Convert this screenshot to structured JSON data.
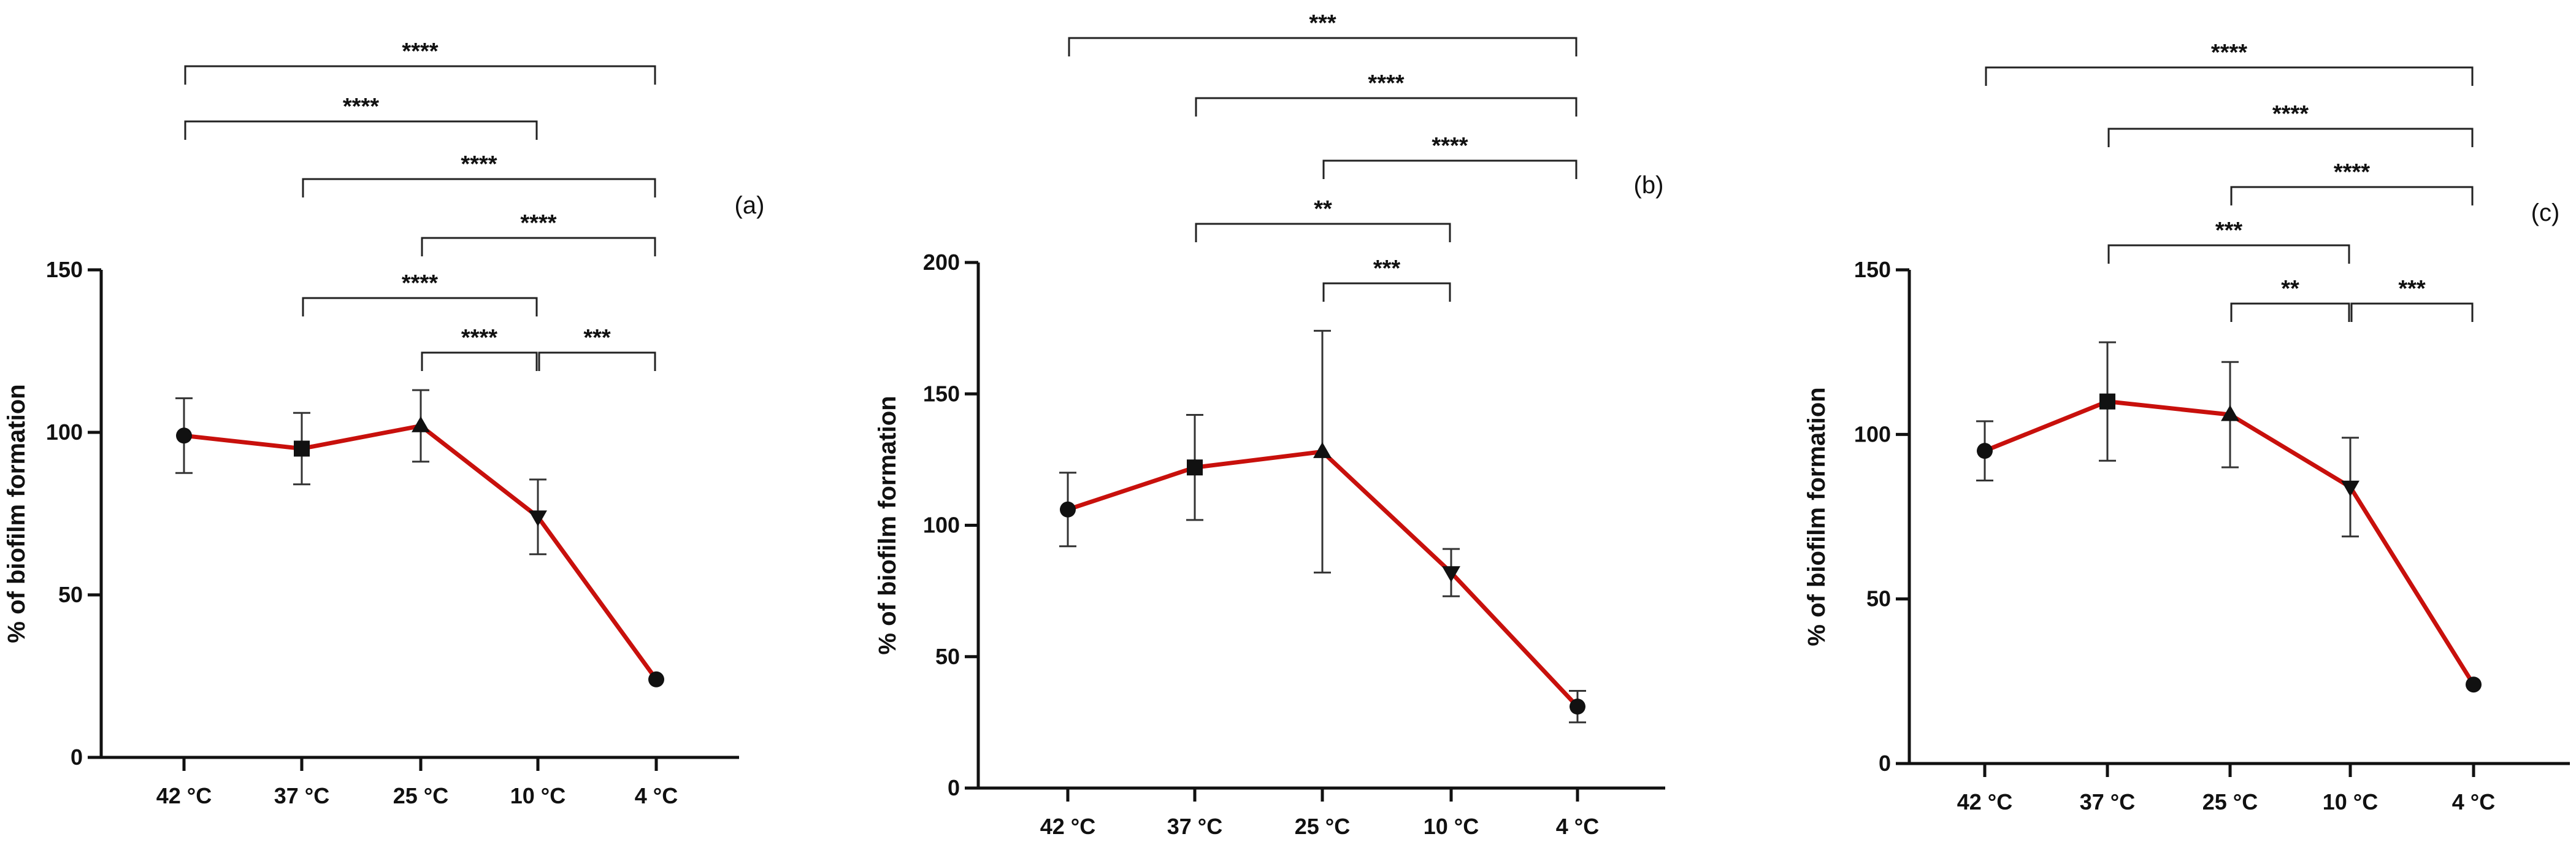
{
  "figure": {
    "type": "line",
    "panels": 3
  },
  "chart_data": [
    {
      "type": "line",
      "panel_label": "(a)",
      "title": "",
      "xlabel": "",
      "ylabel": "% of biofilm formation",
      "categories": [
        "42 °C",
        "37 °C",
        "25 °C",
        "10 °C",
        "4 °C"
      ],
      "values": [
        99,
        95,
        102,
        74,
        24
      ],
      "errors": [
        11.5,
        11,
        11,
        11.5,
        1
      ],
      "markers": [
        "circle",
        "square",
        "triangle-up",
        "triangle-down",
        "circle"
      ],
      "ylim": [
        0,
        150
      ],
      "yticks": [
        0,
        50,
        100,
        150
      ],
      "line_color": "#c8100c",
      "significance": [
        {
          "from": 0,
          "to": 4,
          "label": "****"
        },
        {
          "from": 0,
          "to": 3,
          "label": "****"
        },
        {
          "from": 1,
          "to": 4,
          "label": "****"
        },
        {
          "from": 2,
          "to": 4,
          "label": "****"
        },
        {
          "from": 1,
          "to": 3,
          "label": "****"
        },
        {
          "from": 2,
          "to": 3,
          "label": "****"
        },
        {
          "from": 3,
          "to": 4,
          "label": "***"
        }
      ]
    },
    {
      "type": "line",
      "panel_label": "(b)",
      "title": "",
      "xlabel": "",
      "ylabel": "% of biofilm formation",
      "categories": [
        "42 °C",
        "37 °C",
        "25 °C",
        "10 °C",
        "4 °C"
      ],
      "values": [
        106,
        122,
        128,
        82,
        31
      ],
      "errors": [
        14,
        20,
        46,
        9,
        6
      ],
      "markers": [
        "circle",
        "square",
        "triangle-up",
        "triangle-down",
        "circle"
      ],
      "ylim": [
        0,
        200
      ],
      "yticks": [
        0,
        50,
        100,
        150,
        200
      ],
      "line_color": "#c8100c",
      "significance": [
        {
          "from": 0,
          "to": 4,
          "label": "***"
        },
        {
          "from": 1,
          "to": 4,
          "label": "****"
        },
        {
          "from": 2,
          "to": 4,
          "label": "****"
        },
        {
          "from": 1,
          "to": 3,
          "label": "**"
        },
        {
          "from": 2,
          "to": 3,
          "label": "***"
        }
      ]
    },
    {
      "type": "line",
      "panel_label": "(c)",
      "title": "",
      "xlabel": "",
      "ylabel": "% of biofilm formation",
      "categories": [
        "42 °C",
        "37 °C",
        "25 °C",
        "10 °C",
        "4 °C"
      ],
      "values": [
        95,
        110,
        106,
        84,
        24
      ],
      "errors": [
        9,
        18,
        16,
        15,
        1
      ],
      "markers": [
        "circle",
        "square",
        "triangle-up",
        "triangle-down",
        "circle"
      ],
      "ylim": [
        0,
        150
      ],
      "yticks": [
        0,
        50,
        100,
        150
      ],
      "line_color": "#c8100c",
      "significance": [
        {
          "from": 0,
          "to": 4,
          "label": "****"
        },
        {
          "from": 1,
          "to": 4,
          "label": "****"
        },
        {
          "from": 2,
          "to": 4,
          "label": "****"
        },
        {
          "from": 1,
          "to": 3,
          "label": "***"
        },
        {
          "from": 2,
          "to": 3,
          "label": "**"
        },
        {
          "from": 3,
          "to": 4,
          "label": "***"
        }
      ]
    }
  ]
}
